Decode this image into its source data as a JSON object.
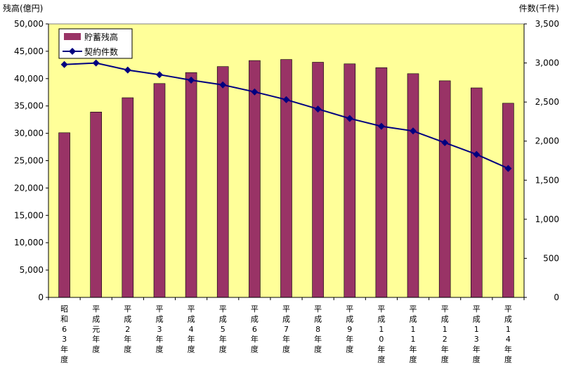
{
  "chart_data": {
    "type": "bar+line",
    "categories": [
      "昭和63年度",
      "平成元年度",
      "平成2年度",
      "平成3年度",
      "平成4年度",
      "平成5年度",
      "平成6年度",
      "平成7年度",
      "平成8年度",
      "平成9年度",
      "平成10年度",
      "平成11年度",
      "平成12年度",
      "平成13年度",
      "平成14年度"
    ],
    "series": [
      {
        "name": "貯蓄残高",
        "type": "bar",
        "axis": "left",
        "values": [
          30100,
          33900,
          36500,
          39100,
          41100,
          42200,
          43300,
          43500,
          43000,
          42700,
          42000,
          40900,
          39600,
          38300,
          35500
        ]
      },
      {
        "name": "契約件数",
        "type": "line",
        "axis": "right",
        "values": [
          2980,
          3000,
          2910,
          2850,
          2780,
          2720,
          2630,
          2530,
          2410,
          2290,
          2190,
          2130,
          1980,
          1830,
          1650
        ]
      }
    ],
    "ylabel_left": "残高(億円)",
    "ylabel_right": "件数(千件)",
    "ylim_left": [
      0,
      50000
    ],
    "ylim_right": [
      0,
      3500
    ],
    "yticks_left": [
      "0",
      "5,000",
      "10,000",
      "15,000",
      "20,000",
      "25,000",
      "30,000",
      "35,000",
      "40,000",
      "45,000",
      "50,000"
    ],
    "yticks_right": [
      "0",
      "500",
      "1,000",
      "1,500",
      "2,000",
      "2,500",
      "3,000",
      "3,500"
    ],
    "grid": false,
    "legend_position": "top-left",
    "colors": {
      "plot_background": "#ffff99",
      "bar": "#993366",
      "line": "#000080"
    }
  }
}
